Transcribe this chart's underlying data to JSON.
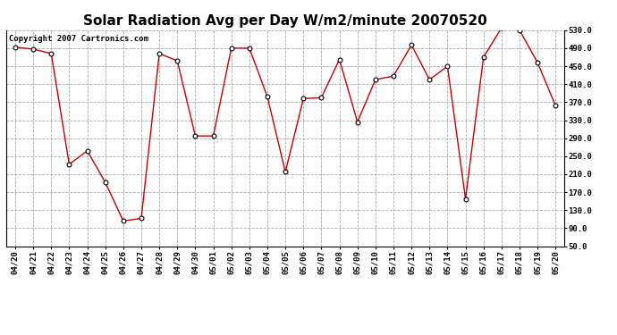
{
  "title": "Solar Radiation Avg per Day W/m2/minute 20070520",
  "copyright_text": "Copyright 2007 Cartronics.com",
  "labels": [
    "04/20",
    "04/21",
    "04/22",
    "04/23",
    "04/24",
    "04/25",
    "04/26",
    "04/27",
    "04/28",
    "04/29",
    "04/30",
    "05/01",
    "05/02",
    "05/03",
    "05/04",
    "05/05",
    "05/06",
    "05/07",
    "05/08",
    "05/09",
    "05/10",
    "05/11",
    "05/12",
    "05/13",
    "05/14",
    "05/15",
    "05/16",
    "05/17",
    "05/18",
    "05/19",
    "05/20"
  ],
  "values": [
    492,
    488,
    478,
    232,
    262,
    192,
    106,
    112,
    478,
    462,
    295,
    295,
    490,
    490,
    382,
    215,
    378,
    380,
    465,
    326,
    420,
    428,
    497,
    420,
    450,
    155,
    470,
    535,
    530,
    458,
    362
  ],
  "line_color": "#cc0000",
  "marker_facecolor": "#ffffff",
  "marker_edgecolor": "#000000",
  "bg_color": "#ffffff",
  "grid_color": "#aaaaaa",
  "ylim_min": 50,
  "ylim_max": 530,
  "yticks": [
    50.0,
    90.0,
    130.0,
    170.0,
    210.0,
    250.0,
    290.0,
    330.0,
    370.0,
    410.0,
    450.0,
    490.0,
    530.0
  ],
  "title_fontsize": 11,
  "copyright_fontsize": 6.5,
  "tick_fontsize": 6.5
}
